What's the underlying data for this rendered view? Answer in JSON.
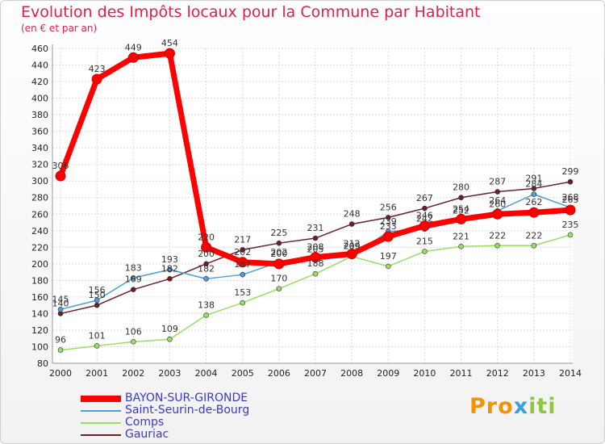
{
  "title": "Evolution des Impôts locaux pour la Commune par Habitant",
  "subtitle": "(en € et par an)",
  "logo": {
    "text": "Proxiti",
    "colors": [
      "#f29400",
      "#3aa0de",
      "#8dc63f"
    ]
  },
  "chart_data": {
    "type": "line",
    "title": "Evolution des Impôts locaux pour la Commune par Habitant",
    "subtitle": "(en € et par an)",
    "xlabel": "",
    "ylabel": "",
    "x": [
      2000,
      2001,
      2002,
      2003,
      2004,
      2005,
      2006,
      2007,
      2008,
      2009,
      2010,
      2011,
      2012,
      2013,
      2014
    ],
    "ylim": [
      80,
      460
    ],
    "yticks": [
      80,
      100,
      120,
      140,
      160,
      180,
      200,
      220,
      240,
      260,
      280,
      300,
      320,
      340,
      360,
      380,
      400,
      420,
      440,
      460
    ],
    "grid": true,
    "legend_position": "bottom-left",
    "series": [
      {
        "name": "BAYON-SUR-GIRONDE",
        "color": "#ff0000",
        "values": [
          306,
          423,
          449,
          454,
          220,
          202,
          200,
          208,
          212,
          233,
          246,
          254,
          260,
          262,
          265
        ]
      },
      {
        "name": "Saint-Seurin-de-Bourg",
        "color": "#4f9ed8",
        "values": [
          145,
          156,
          183,
          193,
          182,
          187,
          202,
          205,
          209,
          239,
          242,
          252,
          264,
          284,
          268
        ]
      },
      {
        "name": "Comps",
        "color": "#99dd66",
        "values": [
          96,
          101,
          106,
          109,
          138,
          153,
          170,
          188,
          209,
          197,
          215,
          221,
          222,
          222,
          235
        ]
      },
      {
        "name": "Gauriac",
        "color": "#6b1f2a",
        "values": [
          140,
          150,
          169,
          182,
          200,
          217,
          225,
          231,
          248,
          256,
          267,
          280,
          287,
          291,
          299
        ]
      }
    ]
  }
}
